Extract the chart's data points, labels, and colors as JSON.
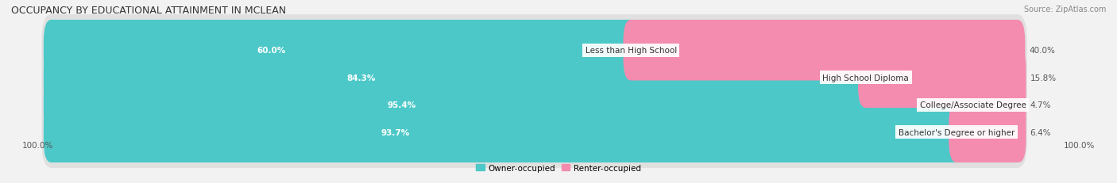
{
  "title": "OCCUPANCY BY EDUCATIONAL ATTAINMENT IN MCLEAN",
  "source": "Source: ZipAtlas.com",
  "categories": [
    "Less than High School",
    "High School Diploma",
    "College/Associate Degree",
    "Bachelor's Degree or higher"
  ],
  "owner_values": [
    60.0,
    84.3,
    95.4,
    93.7
  ],
  "renter_values": [
    40.0,
    15.8,
    4.7,
    6.4
  ],
  "owner_color": "#4dc8c8",
  "renter_color": "#f48cb0",
  "bg_color": "#f2f2f2",
  "bar_bg_color": "#e0e0e0",
  "title_fontsize": 9.0,
  "label_fontsize": 7.5,
  "tick_fontsize": 7.5,
  "source_fontsize": 7.0,
  "legend_fontsize": 7.5,
  "axis_label_left": "100.0%",
  "axis_label_right": "100.0%",
  "total_width": 100
}
